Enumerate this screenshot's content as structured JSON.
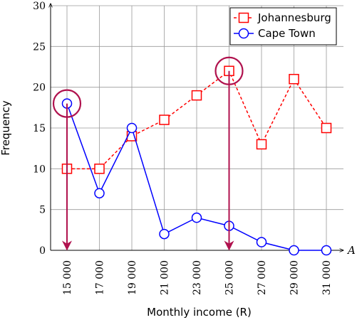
{
  "chart_data": {
    "type": "line",
    "xlabel": "Monthly income (R)",
    "ylabel": "Frequency",
    "x_axis_end_label": "A",
    "categories": [
      "15 000",
      "17 000",
      "19 000",
      "21 000",
      "23 000",
      "25 000",
      "27 000",
      "29 000",
      "31 000"
    ],
    "ylim": [
      0,
      30
    ],
    "yticks": [
      "0",
      "5",
      "10",
      "15",
      "20",
      "25",
      "30"
    ],
    "ytick_values": [
      0,
      5,
      10,
      15,
      20,
      25,
      30
    ],
    "grid": true,
    "legend_position": "top-right",
    "series": [
      {
        "name": "Johannesburg",
        "marker": "square",
        "line_style": "dashed",
        "color": "#ff0000",
        "values": [
          10,
          10,
          14,
          16,
          19,
          22,
          13,
          21,
          15
        ]
      },
      {
        "name": "Cape Town",
        "marker": "circle",
        "line_style": "solid",
        "color": "#0000ff",
        "values": [
          18,
          7,
          15,
          2,
          4,
          3,
          1,
          0,
          0
        ]
      }
    ],
    "highlights": [
      {
        "series": "Cape Town",
        "category": "15 000",
        "value": 18,
        "color": "#b0124e"
      },
      {
        "series": "Johannesburg",
        "category": "25 000",
        "value": 22,
        "color": "#b0124e"
      }
    ]
  }
}
